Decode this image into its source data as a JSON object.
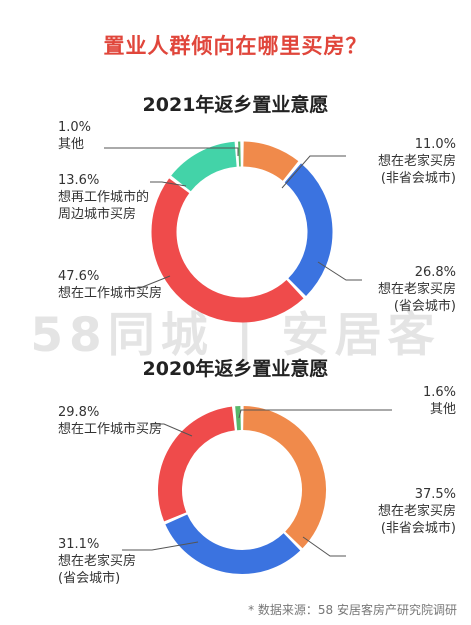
{
  "page": {
    "title": "置业人群倾向在哪里买房？",
    "watermark": "58同城 | 安居客",
    "source": "* 数据来源：58 安居客房产研究院调研"
  },
  "colors": {
    "title": "#e0463b",
    "orange": "#f08a4b",
    "blue": "#3b73e0",
    "red": "#ef4b4b",
    "teal": "#43d3a8",
    "green": "#58b86b"
  },
  "chart_data": [
    {
      "type": "pie",
      "title": "2021年返乡置业意愿",
      "slices": [
        {
          "label": "想在老家买房\n(非省会城市)",
          "value": 11.0,
          "pct": "11.0%",
          "color": "#f08a4b"
        },
        {
          "label": "想在老家买房\n(省会城市)",
          "value": 26.8,
          "pct": "26.8%",
          "color": "#3b73e0"
        },
        {
          "label": "想在工作城市买房",
          "value": 47.6,
          "pct": "47.6%",
          "color": "#ef4b4b"
        },
        {
          "label": "想再工作城市的\n周边城市买房",
          "value": 13.6,
          "pct": "13.6%",
          "color": "#43d3a8"
        },
        {
          "label": "其他",
          "value": 1.0,
          "pct": "1.0%",
          "color": "#58b86b"
        }
      ]
    },
    {
      "type": "pie",
      "title": "2020年返乡置业意愿",
      "slices": [
        {
          "label": "想在老家买房\n(非省会城市)",
          "value": 37.5,
          "pct": "37.5%",
          "color": "#f08a4b"
        },
        {
          "label": "想在老家买房\n(省会城市)",
          "value": 31.1,
          "pct": "31.1%",
          "color": "#3b73e0"
        },
        {
          "label": "想在工作城市买房",
          "value": 29.8,
          "pct": "29.8%",
          "color": "#ef4b4b"
        },
        {
          "label": "其他",
          "value": 1.6,
          "pct": "1.6%",
          "color": "#58b86b"
        }
      ]
    }
  ]
}
